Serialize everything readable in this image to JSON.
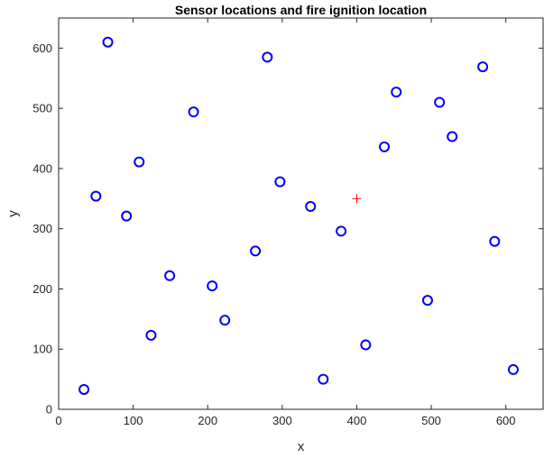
{
  "chart_data": {
    "type": "scatter",
    "title": "Sensor locations and fire ignition location",
    "xlabel": "x",
    "ylabel": "y",
    "xlim": [
      0,
      650
    ],
    "ylim": [
      0,
      650
    ],
    "xticks": [
      0,
      100,
      200,
      300,
      400,
      500,
      600
    ],
    "yticks": [
      0,
      100,
      200,
      300,
      400,
      500,
      600
    ],
    "grid": false,
    "box": true,
    "series": [
      {
        "marker": "circle",
        "color": "#0000ff",
        "points": [
          {
            "x": 66,
            "y": 610
          },
          {
            "x": 280,
            "y": 585
          },
          {
            "x": 569,
            "y": 569
          },
          {
            "x": 453,
            "y": 527
          },
          {
            "x": 511,
            "y": 510
          },
          {
            "x": 181,
            "y": 494
          },
          {
            "x": 528,
            "y": 453
          },
          {
            "x": 437,
            "y": 436
          },
          {
            "x": 108,
            "y": 411
          },
          {
            "x": 297,
            "y": 378
          },
          {
            "x": 50,
            "y": 354
          },
          {
            "x": 338,
            "y": 337
          },
          {
            "x": 91,
            "y": 321
          },
          {
            "x": 379,
            "y": 296
          },
          {
            "x": 585,
            "y": 279
          },
          {
            "x": 264,
            "y": 263
          },
          {
            "x": 149,
            "y": 222
          },
          {
            "x": 206,
            "y": 205
          },
          {
            "x": 495,
            "y": 181
          },
          {
            "x": 223,
            "y": 148
          },
          {
            "x": 124,
            "y": 123
          },
          {
            "x": 412,
            "y": 107
          },
          {
            "x": 610,
            "y": 66
          },
          {
            "x": 355,
            "y": 50
          },
          {
            "x": 34,
            "y": 33
          }
        ]
      },
      {
        "marker": "plus",
        "color": "#ff0000",
        "points": [
          {
            "x": 400,
            "y": 350
          }
        ]
      }
    ]
  }
}
